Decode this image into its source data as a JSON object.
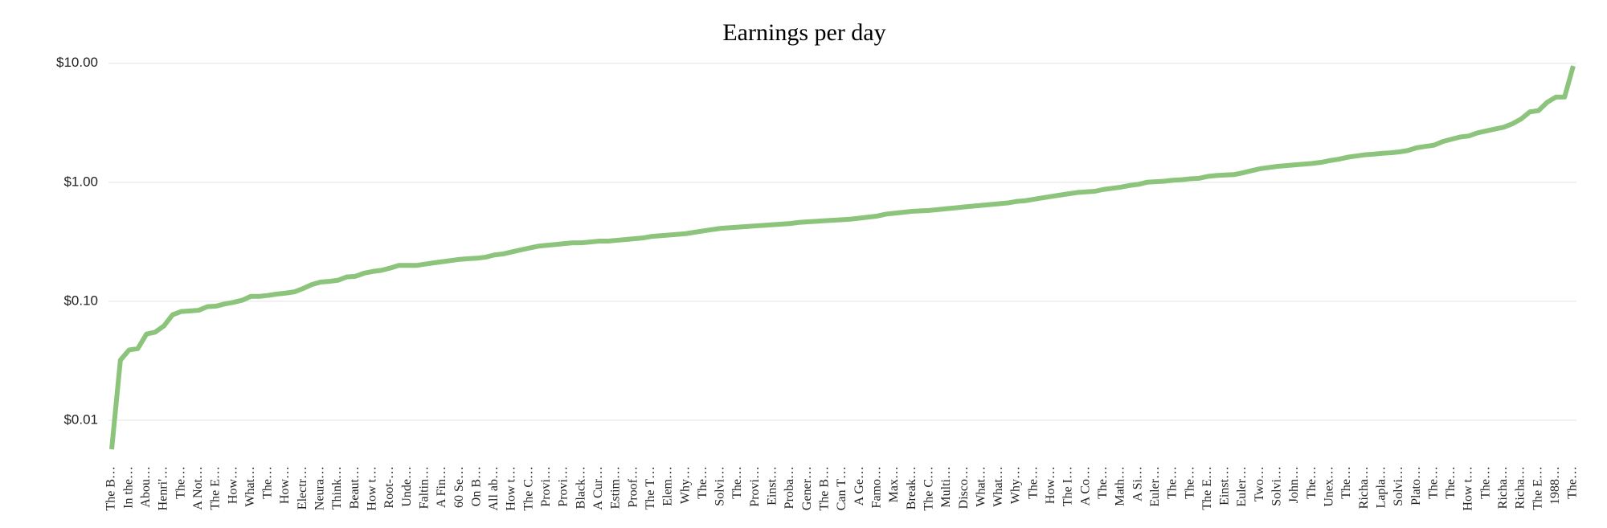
{
  "chart_data": {
    "type": "line",
    "title": "Earnings per day",
    "log_scale": true,
    "grid": true,
    "color": "#8cc47c",
    "ylim": [
      0.005,
      12
    ],
    "yticks": [
      {
        "value": 0.01,
        "label": "$0.01"
      },
      {
        "value": 0.1,
        "label": "$0.10"
      },
      {
        "value": 1,
        "label": "$1.00"
      },
      {
        "value": 10,
        "label": "$10.00"
      }
    ],
    "categories": [
      "The B…",
      null,
      "In the…",
      null,
      "Abou…",
      null,
      "Henri'…",
      null,
      "The…",
      null,
      "A Not…",
      null,
      "The E…",
      null,
      "How…",
      null,
      "What…",
      null,
      "The…",
      null,
      "How…",
      null,
      "Electr…",
      null,
      "Neura…",
      null,
      "Think…",
      null,
      "Beaut…",
      null,
      "How t…",
      null,
      "Root-…",
      null,
      "Unde…",
      null,
      "Faltin…",
      null,
      "A Fin…",
      null,
      "60 Se…",
      null,
      "On B…",
      null,
      "All ab…",
      null,
      "How t…",
      null,
      "The C…",
      null,
      "Provi…",
      null,
      "Provi…",
      null,
      "Black…",
      null,
      "A Cur…",
      null,
      "Estim…",
      null,
      "Proof…",
      null,
      "The T…",
      null,
      "Elem…",
      null,
      "Why…",
      null,
      "The…",
      null,
      "Solvi…",
      null,
      "The…",
      null,
      "Provi…",
      null,
      "Einst…",
      null,
      "Proba…",
      null,
      "Gener…",
      null,
      "The B…",
      null,
      "Can T…",
      null,
      "A Ge…",
      null,
      "Famo…",
      null,
      "Max…",
      null,
      "Break…",
      null,
      "The C…",
      null,
      "Multi…",
      null,
      "Disco…",
      null,
      "What…",
      null,
      "What…",
      null,
      "Why…",
      null,
      "The…",
      null,
      "How…",
      null,
      "The I…",
      null,
      "A Co…",
      null,
      "The…",
      null,
      "Math…",
      null,
      "A Si…",
      null,
      "Euler…",
      null,
      "The…",
      null,
      "The…",
      null,
      "The E…",
      null,
      "Einst…",
      null,
      "Euler…",
      null,
      "Two…",
      null,
      "Solvi…",
      null,
      "John…",
      null,
      "The…",
      null,
      "Unex…",
      null,
      "The…",
      null,
      "Richa…",
      null,
      "Lapla…",
      null,
      "Solvi…",
      null,
      "Plato…",
      null,
      "The…",
      null,
      "The…",
      null,
      "How t…",
      null,
      "The…",
      null,
      "Richa…",
      null,
      "Richa…",
      null,
      "The E…",
      null,
      "1988…",
      null,
      "The…"
    ],
    "values": [
      0.0057,
      0.032,
      0.039,
      0.04,
      0.053,
      0.055,
      0.062,
      0.077,
      0.082,
      0.083,
      0.084,
      0.09,
      0.091,
      0.095,
      0.098,
      0.102,
      0.11,
      0.11,
      0.112,
      0.115,
      0.117,
      0.12,
      0.128,
      0.138,
      0.145,
      0.147,
      0.15,
      0.16,
      0.162,
      0.172,
      0.178,
      0.182,
      0.19,
      0.2,
      0.2,
      0.2,
      0.205,
      0.21,
      0.215,
      0.22,
      0.225,
      0.228,
      0.23,
      0.235,
      0.245,
      0.25,
      0.26,
      0.27,
      0.28,
      0.29,
      0.295,
      0.3,
      0.305,
      0.31,
      0.31,
      0.315,
      0.32,
      0.32,
      0.325,
      0.33,
      0.335,
      0.34,
      0.35,
      0.355,
      0.36,
      0.365,
      0.37,
      0.38,
      0.39,
      0.4,
      0.41,
      0.415,
      0.42,
      0.425,
      0.43,
      0.435,
      0.44,
      0.445,
      0.45,
      0.46,
      0.465,
      0.47,
      0.475,
      0.48,
      0.485,
      0.49,
      0.5,
      0.51,
      0.52,
      0.54,
      0.55,
      0.56,
      0.57,
      0.575,
      0.58,
      0.59,
      0.6,
      0.61,
      0.62,
      0.63,
      0.64,
      0.65,
      0.66,
      0.67,
      0.69,
      0.7,
      0.72,
      0.74,
      0.76,
      0.78,
      0.8,
      0.82,
      0.83,
      0.84,
      0.87,
      0.89,
      0.91,
      0.94,
      0.96,
      1.0,
      1.01,
      1.02,
      1.04,
      1.05,
      1.07,
      1.08,
      1.12,
      1.14,
      1.15,
      1.16,
      1.2,
      1.25,
      1.3,
      1.33,
      1.36,
      1.38,
      1.4,
      1.42,
      1.44,
      1.47,
      1.52,
      1.56,
      1.62,
      1.66,
      1.7,
      1.72,
      1.75,
      1.77,
      1.8,
      1.85,
      1.95,
      2.0,
      2.05,
      2.2,
      2.3,
      2.4,
      2.45,
      2.6,
      2.7,
      2.8,
      2.9,
      3.1,
      3.4,
      3.9,
      4.0,
      4.7,
      5.2,
      5.2,
      9.5
    ]
  }
}
